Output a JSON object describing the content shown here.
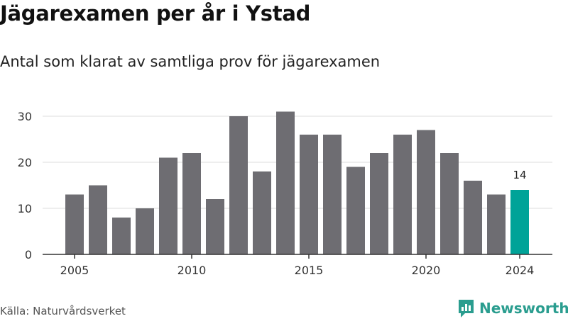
{
  "title": "Jägarexamen per år i Ystad",
  "subtitle": "Antal som klarat av samtliga prov för jägarexamen",
  "source": "Källa: Naturvårdsverket",
  "brand": {
    "name": "Newsworthy",
    "icon": "newsworthy-logo-icon"
  },
  "colors": {
    "bar": "#6e6d72",
    "highlight": "#00a398",
    "grid": "#dddddd",
    "axis": "#333333",
    "brand": "#2a9d8f"
  },
  "chart_data": {
    "type": "bar",
    "title": "Jägarexamen per år i Ystad",
    "subtitle": "Antal som klarat av samtliga prov för jägarexamen",
    "xlabel": "",
    "ylabel": "",
    "categories": [
      2005,
      2006,
      2007,
      2008,
      2009,
      2010,
      2011,
      2012,
      2013,
      2014,
      2015,
      2016,
      2017,
      2018,
      2019,
      2020,
      2021,
      2022,
      2023,
      2024
    ],
    "values": [
      13,
      15,
      8,
      10,
      21,
      22,
      12,
      30,
      18,
      31,
      26,
      26,
      19,
      22,
      26,
      27,
      22,
      16,
      13,
      14
    ],
    "highlight_index": 19,
    "highlight_label": "14",
    "x_ticks": [
      "2005",
      "2010",
      "2015",
      "2020",
      "2024"
    ],
    "y_ticks": [
      "0",
      "10",
      "20",
      "30"
    ],
    "ylim": [
      0,
      33
    ],
    "grid": true,
    "legend": "none"
  }
}
